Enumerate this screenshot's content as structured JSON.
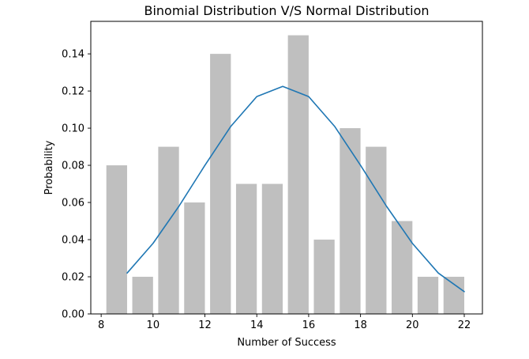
{
  "chart_data": {
    "type": "bar",
    "title": "Binomial Distribution V/S Normal Distribution",
    "xlabel": "Number of Success",
    "ylabel": "Probability",
    "xlim": [
      7.6,
      22.7
    ],
    "ylim": [
      0,
      0.1575
    ],
    "xticks": [
      8,
      10,
      12,
      14,
      16,
      18,
      20,
      22
    ],
    "xtick_labels": [
      "8",
      "10",
      "12",
      "14",
      "16",
      "18",
      "20",
      "22"
    ],
    "yticks": [
      0.0,
      0.02,
      0.04,
      0.06,
      0.08,
      0.1,
      0.12,
      0.14
    ],
    "ytick_labels": [
      "0.00",
      "0.02",
      "0.04",
      "0.06",
      "0.08",
      "0.10",
      "0.12",
      "0.14"
    ],
    "grid": false,
    "bars": {
      "color": "#bfbfbf",
      "x": [
        8.6,
        9.6,
        10.6,
        11.6,
        12.6,
        13.6,
        14.6,
        15.6,
        16.6,
        17.6,
        18.6,
        19.6,
        20.6,
        21.6
      ],
      "values": [
        0.08,
        0.02,
        0.09,
        0.06,
        0.14,
        0.07,
        0.07,
        0.15,
        0.04,
        0.1,
        0.09,
        0.05,
        0.02,
        0.02
      ],
      "width": 0.8
    },
    "line": {
      "color": "#1f77b4",
      "x": [
        9,
        10,
        11,
        12,
        13,
        14,
        15,
        16,
        17,
        18,
        19,
        20,
        21,
        22
      ],
      "values": [
        0.022,
        0.038,
        0.058,
        0.08,
        0.101,
        0.117,
        0.1225,
        0.117,
        0.101,
        0.08,
        0.058,
        0.038,
        0.022,
        0.012
      ]
    }
  }
}
